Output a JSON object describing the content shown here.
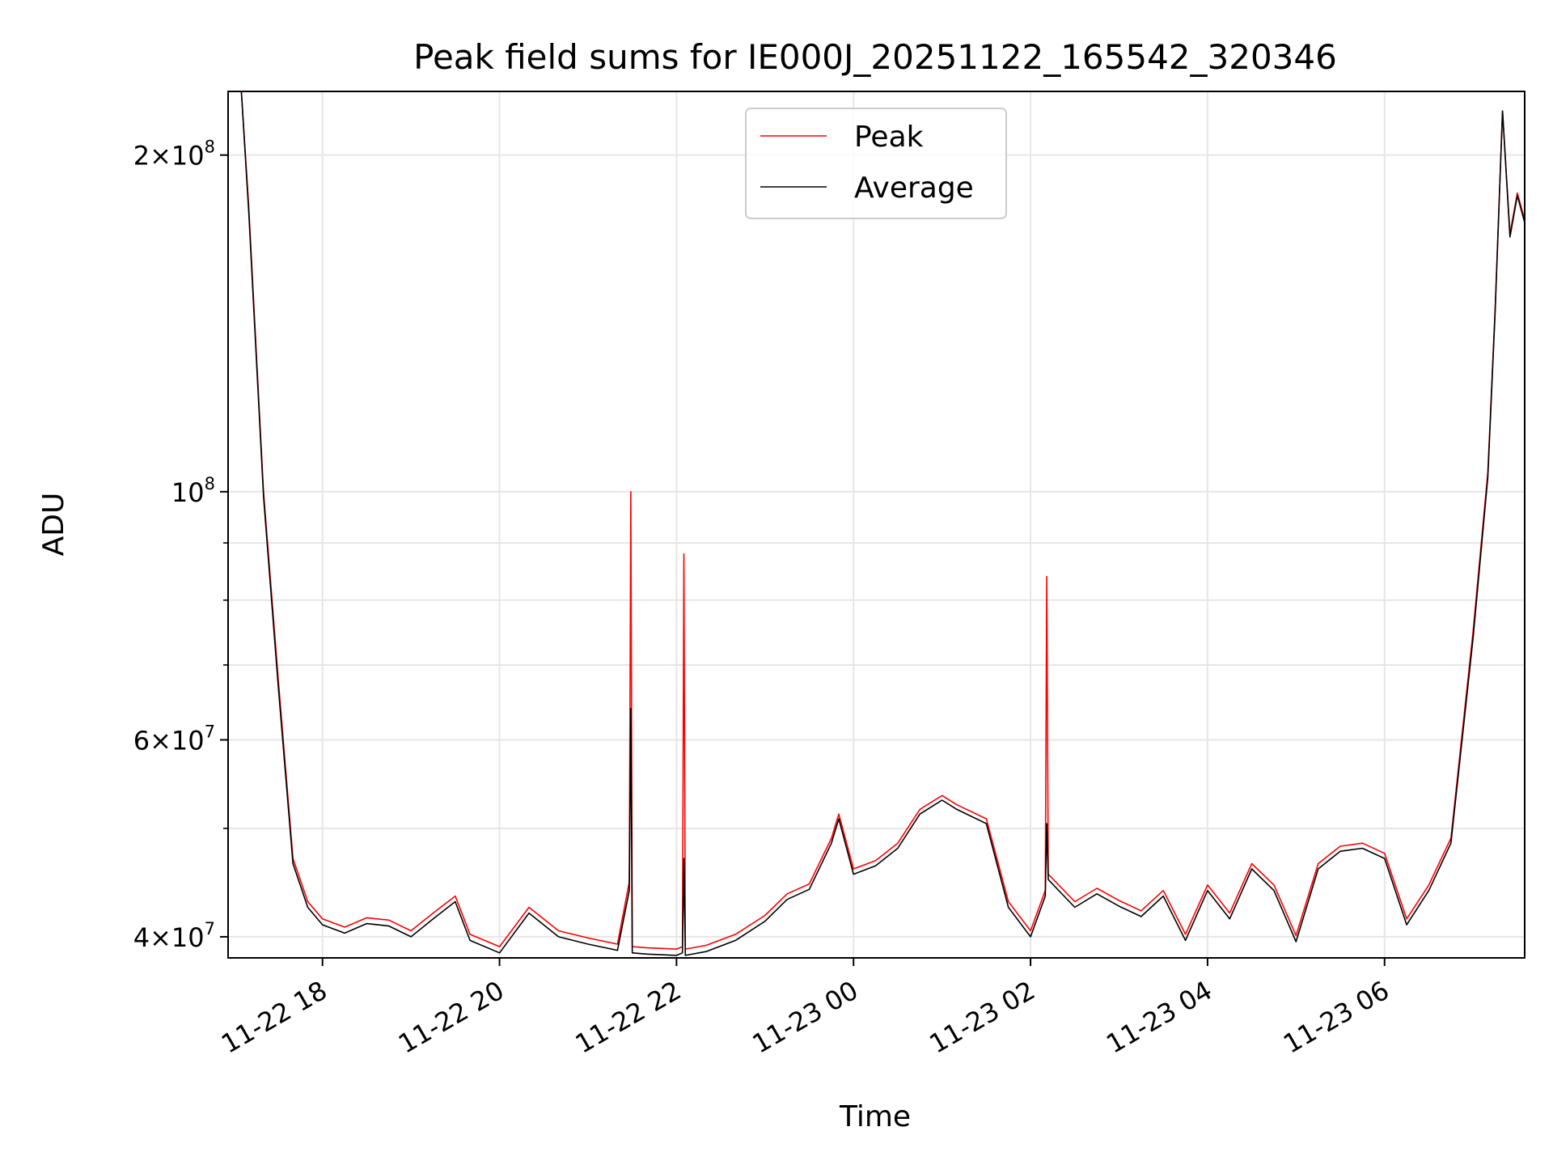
{
  "chart_data": {
    "type": "line",
    "title": "Peak field sums for IE000J_20251122_165542_320346",
    "xlabel": "Time",
    "ylabel": "ADU",
    "yscale": "log",
    "ylim": [
      38300000,
      228000000
    ],
    "xlim": [
      "2025-11-22 16:56",
      "2025-11-23 07:35"
    ],
    "grid": true,
    "legend_position": "top-center",
    "x_ticks": [
      {
        "value": "2025-11-22 18:00",
        "label": "11-22 18"
      },
      {
        "value": "2025-11-22 20:00",
        "label": "11-22 20"
      },
      {
        "value": "2025-11-22 22:00",
        "label": "11-22 22"
      },
      {
        "value": "2025-11-23 00:00",
        "label": "11-23 00"
      },
      {
        "value": "2025-11-23 02:00",
        "label": "11-23 02"
      },
      {
        "value": "2025-11-23 04:00",
        "label": "11-23 04"
      },
      {
        "value": "2025-11-23 06:00",
        "label": "11-23 06"
      }
    ],
    "y_ticks_major": [
      {
        "value": 40000000,
        "mantissa": "4",
        "exp": "7"
      },
      {
        "value": 60000000,
        "mantissa": "6",
        "exp": "7"
      },
      {
        "value": 100000000,
        "mantissa": "",
        "exp": "8"
      },
      {
        "value": 200000000,
        "mantissa": "2",
        "exp": "8"
      }
    ],
    "y_ticks_minor": [
      50000000,
      70000000,
      80000000,
      90000000
    ],
    "series": [
      {
        "name": "Peak",
        "color": "#ff0000",
        "x": [
          "2025-11-22 16:56",
          "2025-11-22 17:05",
          "2025-11-22 17:10",
          "2025-11-22 17:20",
          "2025-11-22 17:30",
          "2025-11-22 17:40",
          "2025-11-22 17:50",
          "2025-11-22 18:00",
          "2025-11-22 18:15",
          "2025-11-22 18:30",
          "2025-11-22 18:45",
          "2025-11-22 19:00",
          "2025-11-22 19:15",
          "2025-11-22 19:30",
          "2025-11-22 19:40",
          "2025-11-22 20:00",
          "2025-11-22 20:20",
          "2025-11-22 20:40",
          "2025-11-22 21:00",
          "2025-11-22 21:20",
          "2025-11-22 21:28",
          "2025-11-22 21:29",
          "2025-11-22 21:30",
          "2025-11-22 21:40",
          "2025-11-22 22:00",
          "2025-11-22 22:04",
          "2025-11-22 22:05",
          "2025-11-22 22:06",
          "2025-11-22 22:20",
          "2025-11-22 22:40",
          "2025-11-22 23:00",
          "2025-11-22 23:15",
          "2025-11-22 23:30",
          "2025-11-22 23:45",
          "2025-11-22 23:50",
          "2025-11-23 00:00",
          "2025-11-23 00:15",
          "2025-11-23 00:30",
          "2025-11-23 00:45",
          "2025-11-23 01:00",
          "2025-11-23 01:10",
          "2025-11-23 01:30",
          "2025-11-23 01:45",
          "2025-11-23 02:00",
          "2025-11-23 02:10",
          "2025-11-23 02:11",
          "2025-11-23 02:12",
          "2025-11-23 02:30",
          "2025-11-23 02:45",
          "2025-11-23 03:00",
          "2025-11-23 03:15",
          "2025-11-23 03:30",
          "2025-11-23 03:45",
          "2025-11-23 04:00",
          "2025-11-23 04:15",
          "2025-11-23 04:30",
          "2025-11-23 04:45",
          "2025-11-23 05:00",
          "2025-11-23 05:15",
          "2025-11-23 05:30",
          "2025-11-23 05:45",
          "2025-11-23 06:00",
          "2025-11-23 06:15",
          "2025-11-23 06:30",
          "2025-11-23 06:45",
          "2025-11-23 07:00",
          "2025-11-23 07:10",
          "2025-11-23 07:15",
          "2025-11-23 07:20",
          "2025-11-23 07:25",
          "2025-11-23 07:30",
          "2025-11-23 07:35"
        ],
        "y": [
          228000000,
          228000000,
          180000000,
          100000000,
          68000000,
          47000000,
          43000000,
          41500000,
          40800000,
          41600000,
          41400000,
          40500000,
          42000000,
          43500000,
          40200000,
          39200000,
          42500000,
          40500000,
          39900000,
          39400000,
          44800000,
          100000000,
          39200000,
          39100000,
          39000000,
          39200000,
          88000000,
          39000000,
          39300000,
          40200000,
          41800000,
          43700000,
          44600000,
          49000000,
          51500000,
          46000000,
          46800000,
          48500000,
          52000000,
          53500000,
          52500000,
          51000000,
          43000000,
          40500000,
          44000000,
          84000000,
          45500000,
          43000000,
          44200000,
          43100000,
          42200000,
          44000000,
          40200000,
          44500000,
          42000000,
          46500000,
          44500000,
          40100000,
          46500000,
          48200000,
          48500000,
          47500000,
          41500000,
          44500000,
          49000000,
          75000000,
          104000000,
          146000000,
          219000000,
          170000000,
          185000000,
          175000000
        ]
      },
      {
        "name": "Average",
        "color": "#000000",
        "x": [
          "2025-11-22 16:56",
          "2025-11-22 17:05",
          "2025-11-22 17:10",
          "2025-11-22 17:20",
          "2025-11-22 17:30",
          "2025-11-22 17:40",
          "2025-11-22 17:50",
          "2025-11-22 18:00",
          "2025-11-22 18:15",
          "2025-11-22 18:30",
          "2025-11-22 18:45",
          "2025-11-22 19:00",
          "2025-11-22 19:15",
          "2025-11-22 19:30",
          "2025-11-22 19:40",
          "2025-11-22 20:00",
          "2025-11-22 20:20",
          "2025-11-22 20:40",
          "2025-11-22 21:00",
          "2025-11-22 21:20",
          "2025-11-22 21:28",
          "2025-11-22 21:29",
          "2025-11-22 21:30",
          "2025-11-22 21:40",
          "2025-11-22 22:00",
          "2025-11-22 22:04",
          "2025-11-22 22:05",
          "2025-11-22 22:06",
          "2025-11-22 22:20",
          "2025-11-22 22:40",
          "2025-11-22 23:00",
          "2025-11-22 23:15",
          "2025-11-22 23:30",
          "2025-11-22 23:45",
          "2025-11-22 23:50",
          "2025-11-23 00:00",
          "2025-11-23 00:15",
          "2025-11-23 00:30",
          "2025-11-23 00:45",
          "2025-11-23 01:00",
          "2025-11-23 01:10",
          "2025-11-23 01:30",
          "2025-11-23 01:45",
          "2025-11-23 02:00",
          "2025-11-23 02:10",
          "2025-11-23 02:11",
          "2025-11-23 02:12",
          "2025-11-23 02:30",
          "2025-11-23 02:45",
          "2025-11-23 03:00",
          "2025-11-23 03:15",
          "2025-11-23 03:30",
          "2025-11-23 03:45",
          "2025-11-23 04:00",
          "2025-11-23 04:15",
          "2025-11-23 04:30",
          "2025-11-23 04:45",
          "2025-11-23 05:00",
          "2025-11-23 05:15",
          "2025-11-23 05:30",
          "2025-11-23 05:45",
          "2025-11-23 06:00",
          "2025-11-23 06:15",
          "2025-11-23 06:30",
          "2025-11-23 06:45",
          "2025-11-23 07:00",
          "2025-11-23 07:10",
          "2025-11-23 07:15",
          "2025-11-23 07:20",
          "2025-11-23 07:25",
          "2025-11-23 07:30",
          "2025-11-23 07:35"
        ],
        "y": [
          228000000,
          228000000,
          178000000,
          99000000,
          67000000,
          46500000,
          42500000,
          41000000,
          40300000,
          41100000,
          40900000,
          40000000,
          41500000,
          43000000,
          39700000,
          38700000,
          42000000,
          40000000,
          39400000,
          38900000,
          44000000,
          64000000,
          38700000,
          38600000,
          38500000,
          38700000,
          47000000,
          38500000,
          38800000,
          39700000,
          41300000,
          43200000,
          44100000,
          48500000,
          51000000,
          45500000,
          46300000,
          48000000,
          51500000,
          53000000,
          52000000,
          50500000,
          42500000,
          40000000,
          43500000,
          50500000,
          45000000,
          42500000,
          43700000,
          42600000,
          41700000,
          43500000,
          39700000,
          44000000,
          41500000,
          46000000,
          44000000,
          39600000,
          46000000,
          47700000,
          48000000,
          47000000,
          41000000,
          44000000,
          48500000,
          74000000,
          103000000,
          145000000,
          219000000,
          169000000,
          184000000,
          174000000
        ]
      }
    ]
  }
}
